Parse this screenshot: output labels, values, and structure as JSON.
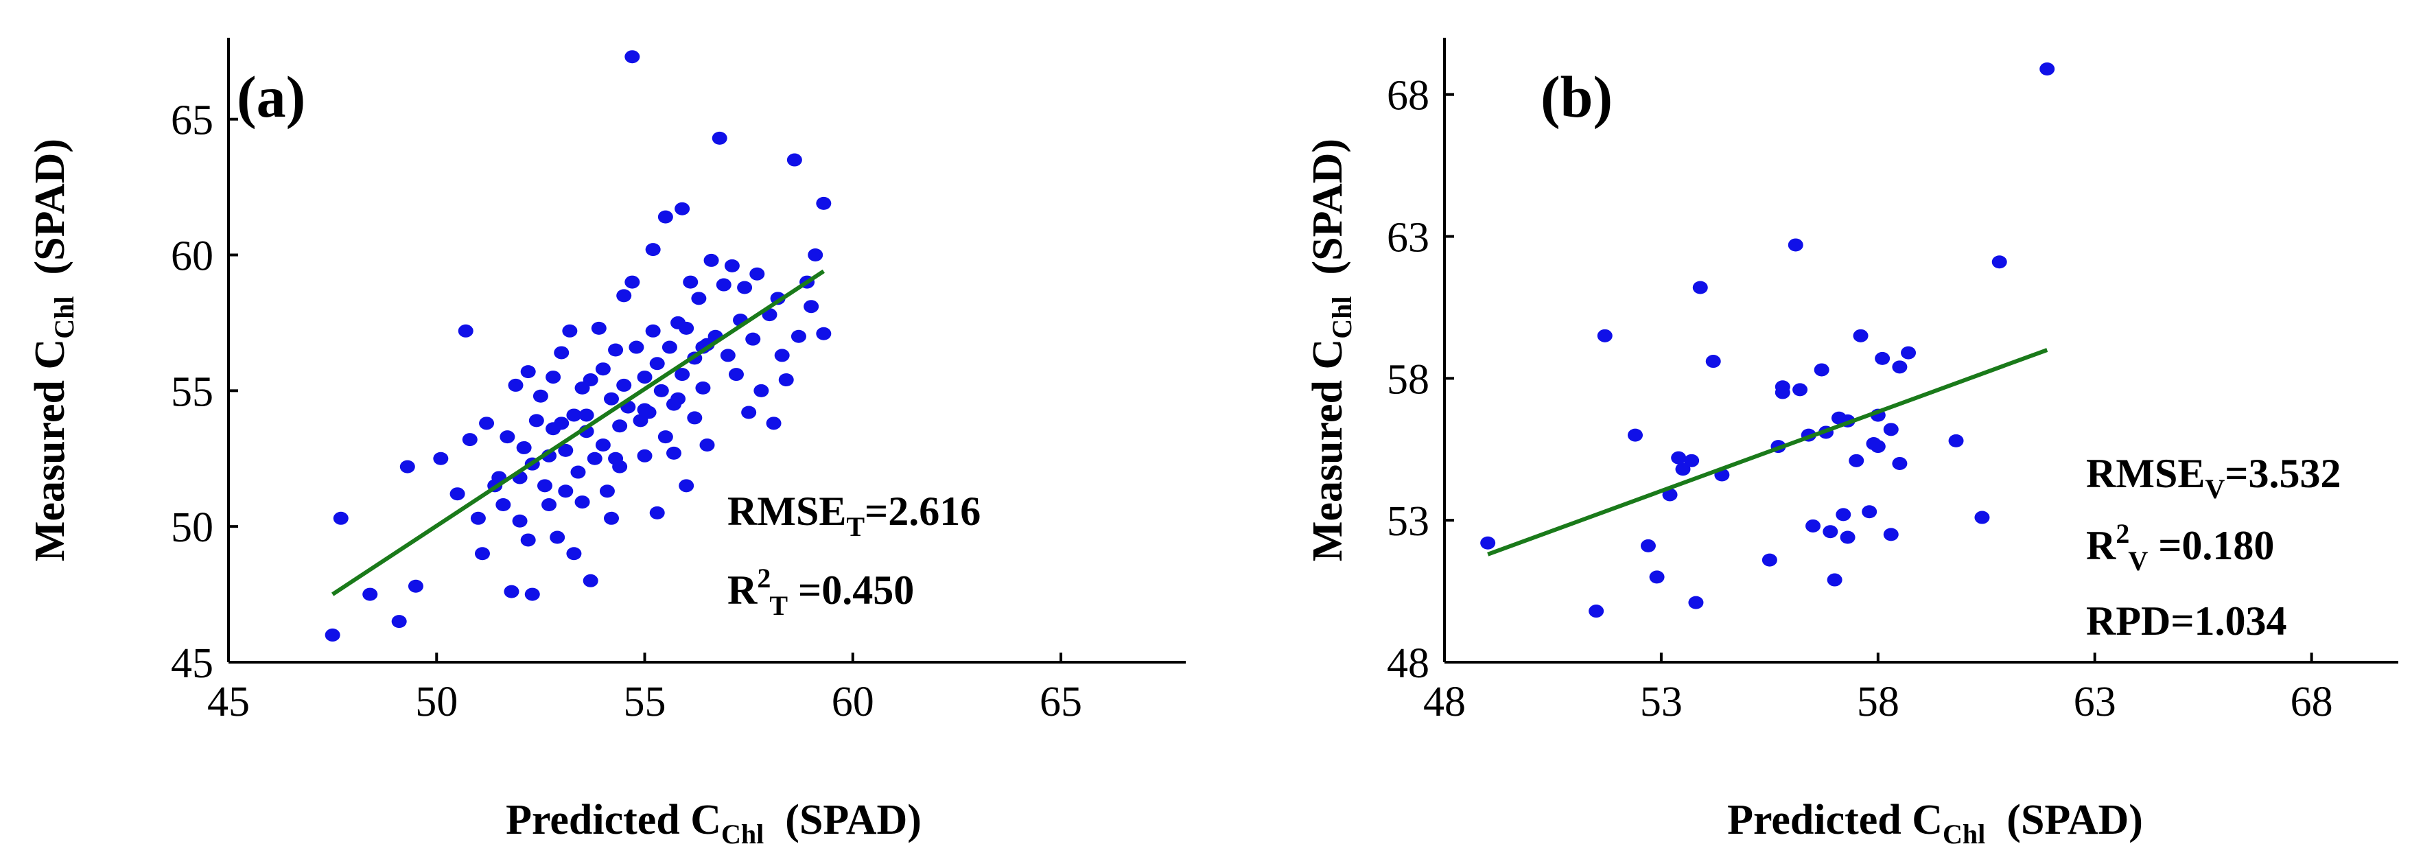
{
  "chart_data": [
    {
      "type": "scatter",
      "panel_label": "(a)",
      "xlabel": {
        "main": "Predicted C",
        "sub": "Chl",
        "unit": "(SPAD)"
      },
      "ylabel": {
        "main": "Measured  C",
        "sub": "Chl",
        "unit": "(SPAD)"
      },
      "xlim": [
        45,
        68
      ],
      "ylim": [
        45,
        68
      ],
      "xticks": [
        45,
        50,
        55,
        60,
        65
      ],
      "yticks": [
        45,
        50,
        55,
        60,
        65
      ],
      "xtick_labels": [
        "45",
        "50",
        "55",
        "60",
        "65"
      ],
      "ytick_labels": [
        "45",
        "50",
        "55",
        "60",
        "65"
      ],
      "grid": false,
      "point_color": "#1010e8",
      "line_color": "#1a7a1a",
      "fit_line": {
        "x": [
          47.5,
          59.3
        ],
        "y": [
          47.5,
          59.4
        ]
      },
      "stats": [
        {
          "main": "RMSE",
          "sub": "T",
          "sup": "",
          "value": "=2.616"
        },
        {
          "main": "R",
          "sub": "T",
          "sup": "2",
          "value": " =0.450"
        }
      ],
      "points": [
        [
          47.5,
          46.0
        ],
        [
          47.7,
          50.3
        ],
        [
          48.4,
          47.5
        ],
        [
          49.1,
          46.5
        ],
        [
          49.3,
          52.2
        ],
        [
          49.5,
          47.8
        ],
        [
          50.1,
          52.5
        ],
        [
          50.5,
          51.2
        ],
        [
          50.7,
          57.2
        ],
        [
          50.8,
          53.2
        ],
        [
          51.0,
          50.3
        ],
        [
          51.1,
          49.0
        ],
        [
          51.2,
          53.8
        ],
        [
          51.4,
          51.5
        ],
        [
          51.5,
          51.8
        ],
        [
          51.6,
          50.8
        ],
        [
          51.7,
          53.3
        ],
        [
          51.8,
          47.6
        ],
        [
          51.9,
          55.2
        ],
        [
          52.0,
          50.2
        ],
        [
          52.0,
          51.8
        ],
        [
          52.1,
          52.9
        ],
        [
          52.2,
          55.7
        ],
        [
          52.2,
          49.5
        ],
        [
          52.3,
          47.5
        ],
        [
          52.3,
          52.3
        ],
        [
          52.4,
          53.9
        ],
        [
          52.5,
          54.8
        ],
        [
          52.6,
          51.5
        ],
        [
          52.7,
          52.6
        ],
        [
          52.7,
          50.8
        ],
        [
          52.8,
          55.5
        ],
        [
          52.9,
          49.6
        ],
        [
          53.0,
          53.8
        ],
        [
          53.0,
          56.4
        ],
        [
          53.1,
          51.3
        ],
        [
          53.1,
          52.8
        ],
        [
          53.2,
          57.2
        ],
        [
          53.3,
          49.0
        ],
        [
          53.3,
          54.1
        ],
        [
          53.4,
          52.0
        ],
        [
          53.5,
          55.1
        ],
        [
          53.5,
          50.9
        ],
        [
          53.6,
          53.5
        ],
        [
          53.7,
          48.0
        ],
        [
          53.7,
          55.4
        ],
        [
          53.8,
          52.5
        ],
        [
          53.9,
          57.3
        ],
        [
          54.0,
          53.0
        ],
        [
          54.0,
          55.8
        ],
        [
          54.1,
          51.3
        ],
        [
          54.2,
          50.3
        ],
        [
          54.2,
          54.7
        ],
        [
          54.3,
          56.5
        ],
        [
          54.4,
          52.2
        ],
        [
          54.4,
          53.7
        ],
        [
          54.5,
          58.5
        ],
        [
          54.5,
          55.2
        ],
        [
          54.6,
          54.4
        ],
        [
          54.7,
          59.0
        ],
        [
          54.7,
          67.3
        ],
        [
          54.8,
          56.6
        ],
        [
          54.9,
          53.9
        ],
        [
          55.0,
          52.6
        ],
        [
          55.0,
          55.5
        ],
        [
          55.1,
          54.2
        ],
        [
          55.2,
          57.2
        ],
        [
          55.2,
          60.2
        ],
        [
          55.3,
          50.5
        ],
        [
          55.3,
          56.0
        ],
        [
          55.4,
          55.0
        ],
        [
          55.5,
          53.3
        ],
        [
          55.5,
          61.4
        ],
        [
          55.6,
          56.6
        ],
        [
          55.7,
          54.5
        ],
        [
          55.7,
          52.7
        ],
        [
          55.8,
          57.5
        ],
        [
          55.9,
          61.7
        ],
        [
          55.9,
          55.6
        ],
        [
          56.0,
          51.5
        ],
        [
          56.0,
          57.3
        ],
        [
          56.1,
          59.0
        ],
        [
          56.2,
          56.2
        ],
        [
          56.2,
          54.0
        ],
        [
          56.3,
          58.4
        ],
        [
          56.4,
          55.1
        ],
        [
          56.5,
          56.7
        ],
        [
          56.5,
          53.0
        ],
        [
          56.6,
          59.8
        ],
        [
          56.7,
          57.0
        ],
        [
          56.8,
          64.3
        ],
        [
          56.9,
          58.9
        ],
        [
          57.0,
          56.3
        ],
        [
          57.1,
          59.6
        ],
        [
          57.2,
          55.6
        ],
        [
          57.3,
          57.6
        ],
        [
          57.4,
          58.8
        ],
        [
          57.5,
          54.2
        ],
        [
          57.6,
          56.9
        ],
        [
          57.7,
          59.3
        ],
        [
          57.8,
          55.0
        ],
        [
          58.0,
          57.8
        ],
        [
          58.1,
          53.8
        ],
        [
          58.2,
          58.4
        ],
        [
          58.3,
          56.3
        ],
        [
          58.4,
          55.4
        ],
        [
          58.6,
          63.5
        ],
        [
          58.7,
          57.0
        ],
        [
          58.9,
          59.0
        ],
        [
          59.0,
          58.1
        ],
        [
          59.1,
          60.0
        ],
        [
          59.3,
          61.9
        ],
        [
          59.3,
          57.1
        ],
        [
          56.4,
          56.6
        ],
        [
          55.0,
          54.3
        ],
        [
          54.3,
          52.5
        ],
        [
          53.6,
          54.1
        ],
        [
          52.8,
          53.6
        ],
        [
          55.8,
          54.7
        ]
      ]
    },
    {
      "type": "scatter",
      "panel_label": "(b)",
      "xlabel": {
        "main": "Predicted C",
        "sub": "Chl",
        "unit": "(SPAD)"
      },
      "ylabel": {
        "main": "Measured  C",
        "sub": "Chl",
        "unit": "(SPAD)"
      },
      "xlim": [
        48,
        70
      ],
      "ylim": [
        48,
        70
      ],
      "xticks": [
        48,
        53,
        58,
        63,
        68
      ],
      "yticks": [
        48,
        53,
        58,
        63,
        68
      ],
      "xtick_labels": [
        "48",
        "53",
        "58",
        "63",
        "68"
      ],
      "ytick_labels": [
        "48",
        "53",
        "58",
        "63",
        "68"
      ],
      "grid": false,
      "point_color": "#1010e8",
      "line_color": "#1a7a1a",
      "fit_line": {
        "x": [
          49.0,
          61.9
        ],
        "y": [
          51.8,
          59.0
        ]
      },
      "stats": [
        {
          "main": "RMSE",
          "sub": "V",
          "sup": "",
          "value": "=3.532"
        },
        {
          "main": "R",
          "sub": "V",
          "sup": "2",
          "value": " =0.180"
        },
        {
          "main": "RPD",
          "sub": "",
          "sup": "",
          "value": "=1.034"
        }
      ],
      "points": [
        [
          49.0,
          52.2
        ],
        [
          51.5,
          49.8
        ],
        [
          51.7,
          59.5
        ],
        [
          52.4,
          56.0
        ],
        [
          52.7,
          52.1
        ],
        [
          52.9,
          51.0
        ],
        [
          53.2,
          53.9
        ],
        [
          53.4,
          55.2
        ],
        [
          53.5,
          54.8
        ],
        [
          53.7,
          55.1
        ],
        [
          53.8,
          50.1
        ],
        [
          53.9,
          61.2
        ],
        [
          54.2,
          58.6
        ],
        [
          54.4,
          54.6
        ],
        [
          55.5,
          51.6
        ],
        [
          55.7,
          55.6
        ],
        [
          55.8,
          57.5
        ],
        [
          55.8,
          57.7
        ],
        [
          56.1,
          62.7
        ],
        [
          56.2,
          57.6
        ],
        [
          56.5,
          52.8
        ],
        [
          56.7,
          58.3
        ],
        [
          56.8,
          56.1
        ],
        [
          56.9,
          52.6
        ],
        [
          57.1,
          56.6
        ],
        [
          57.2,
          53.2
        ],
        [
          57.3,
          52.4
        ],
        [
          57.0,
          50.9
        ],
        [
          57.5,
          55.1
        ],
        [
          57.6,
          59.5
        ],
        [
          57.8,
          53.3
        ],
        [
          57.9,
          55.7
        ],
        [
          58.0,
          56.7
        ],
        [
          58.1,
          58.7
        ],
        [
          58.3,
          56.2
        ],
        [
          58.5,
          58.4
        ],
        [
          58.5,
          55.0
        ],
        [
          58.7,
          58.9
        ],
        [
          58.3,
          52.5
        ],
        [
          59.8,
          55.8
        ],
        [
          60.4,
          53.1
        ],
        [
          60.8,
          62.1
        ],
        [
          61.9,
          68.9
        ],
        [
          57.3,
          56.5
        ],
        [
          56.4,
          56.0
        ],
        [
          58.0,
          55.6
        ]
      ]
    }
  ]
}
